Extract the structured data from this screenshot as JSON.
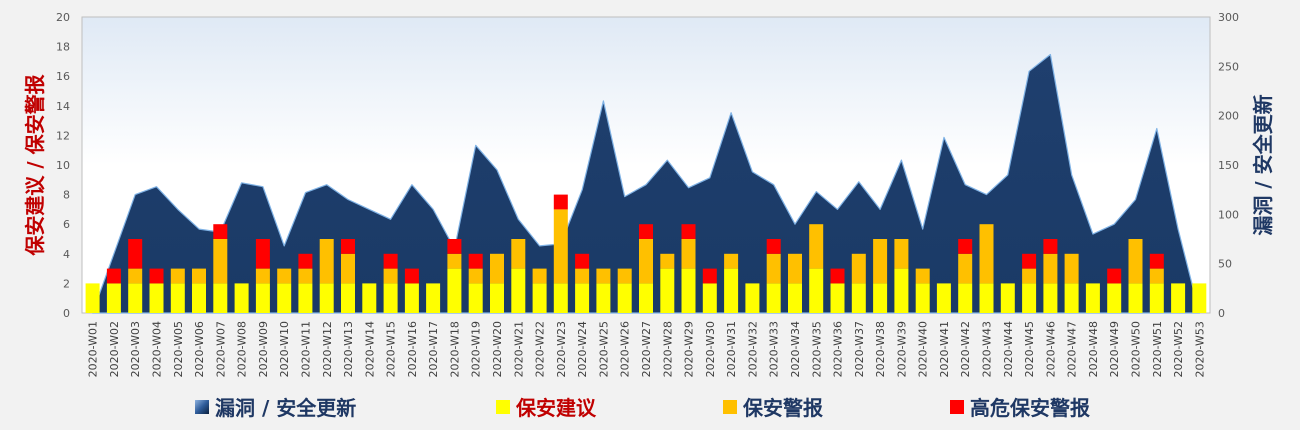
{
  "chart_data": {
    "type": "bar",
    "categories": [
      "2020-W01",
      "2020-W02",
      "2020-W03",
      "2020-W04",
      "2020-W05",
      "2020-W06",
      "2020-W07",
      "2020-W08",
      "2020-W09",
      "2020-W10",
      "2020-W11",
      "2020-W12",
      "2020-W13",
      "2020-W14",
      "2020-W15",
      "2020-W16",
      "2020-W17",
      "2020-W18",
      "2020-W19",
      "2020-W20",
      "2020-W21",
      "2020-W22",
      "2020-W23",
      "2020-W24",
      "2020-W25",
      "2020-W26",
      "2020-W27",
      "2020-W28",
      "2020-W29",
      "2020-W30",
      "2020-W31",
      "2020-W32",
      "2020-W33",
      "2020-W34",
      "2020-W35",
      "2020-W36",
      "2020-W37",
      "2020-W38",
      "2020-W39",
      "2020-W40",
      "2020-W41",
      "2020-W42",
      "2020-W43",
      "2020-W44",
      "2020-W45",
      "2020-W46",
      "2020-W47",
      "2020-W48",
      "2020-W49",
      "2020-W50",
      "2020-W51",
      "2020-W52",
      "2020-W53"
    ],
    "stacking": "stacked",
    "ylabel": "保安建议 / 保安警报",
    "y2label": "漏洞 / 安全更新",
    "ylim": [
      0,
      20
    ],
    "yticks": [
      0,
      2,
      4,
      6,
      8,
      10,
      12,
      14,
      16,
      18,
      20
    ],
    "y2lim": [
      0,
      300
    ],
    "y2ticks": [
      0,
      50,
      100,
      150,
      200,
      250,
      300
    ],
    "grid": false,
    "legend_position": "bottom",
    "series": [
      {
        "name": "保安建议",
        "kind": "bar",
        "axis": "left",
        "color": "#ffff00",
        "values": [
          2,
          2,
          2,
          2,
          2,
          2,
          2,
          2,
          2,
          2,
          2,
          2,
          2,
          2,
          2,
          2,
          2,
          3,
          2,
          2,
          3,
          2,
          2,
          2,
          2,
          2,
          2,
          3,
          3,
          2,
          3,
          2,
          2,
          2,
          3,
          2,
          2,
          2,
          3,
          2,
          2,
          2,
          2,
          2,
          2,
          2,
          2,
          2,
          2,
          2,
          2,
          2,
          2
        ]
      },
      {
        "name": "保安警报",
        "kind": "bar",
        "axis": "left",
        "color": "#ffc000",
        "values": [
          0,
          0,
          1,
          0,
          1,
          1,
          3,
          0,
          1,
          1,
          1,
          3,
          2,
          0,
          1,
          0,
          0,
          1,
          1,
          2,
          2,
          1,
          5,
          1,
          1,
          1,
          3,
          1,
          2,
          0,
          1,
          0,
          2,
          2,
          3,
          0,
          2,
          3,
          2,
          1,
          0,
          2,
          4,
          0,
          1,
          2,
          2,
          0,
          0,
          3,
          1,
          0,
          0
        ]
      },
      {
        "name": "高危保安警报",
        "kind": "bar",
        "axis": "left",
        "color": "#ff0000",
        "values": [
          0,
          1,
          2,
          1,
          0,
          0,
          1,
          0,
          2,
          0,
          1,
          0,
          1,
          0,
          1,
          1,
          0,
          1,
          1,
          0,
          0,
          0,
          1,
          1,
          0,
          0,
          1,
          0,
          1,
          1,
          0,
          0,
          1,
          0,
          0,
          1,
          0,
          0,
          0,
          0,
          0,
          1,
          0,
          0,
          1,
          1,
          0,
          0,
          1,
          0,
          1,
          0,
          0
        ]
      },
      {
        "name": "漏洞 / 安全更新",
        "kind": "area",
        "axis": "right",
        "color": "#1f3f6e",
        "values": [
          0,
          60,
          120,
          128,
          105,
          85,
          82,
          132,
          128,
          68,
          122,
          130,
          115,
          105,
          95,
          130,
          105,
          65,
          170,
          145,
          95,
          68,
          70,
          125,
          215,
          118,
          130,
          155,
          127,
          137,
          203,
          143,
          130,
          90,
          123,
          105,
          133,
          105,
          155,
          85,
          178,
          130,
          120,
          140,
          245,
          262,
          140,
          80,
          90,
          115,
          187,
          85,
          0
        ]
      }
    ]
  }
}
